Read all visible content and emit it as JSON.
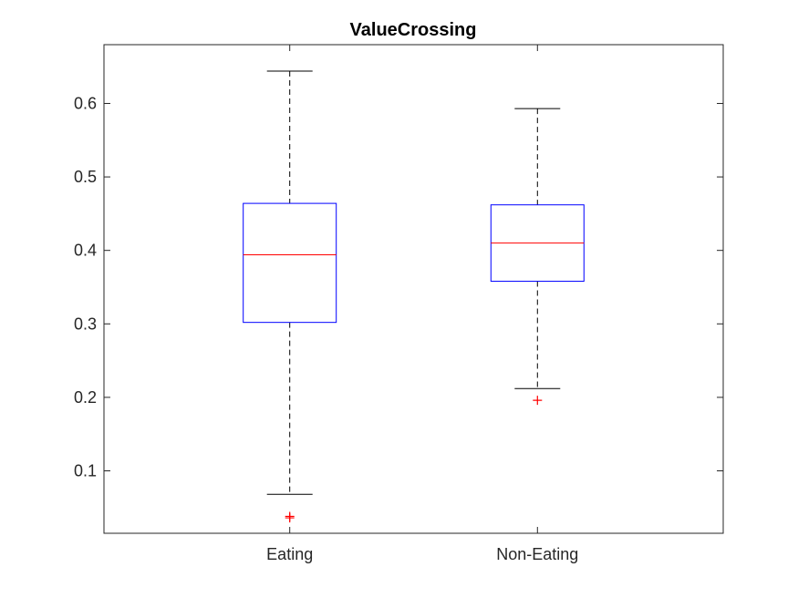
{
  "chart_data": {
    "type": "box",
    "title": "ValueCrossing",
    "xlabel": "",
    "ylabel": "",
    "categories": [
      "Eating",
      "Non-Eating"
    ],
    "ylim": [
      0.015,
      0.68
    ],
    "yticks": [
      0.1,
      0.2,
      0.3,
      0.4,
      0.5,
      0.6
    ],
    "ytick_labels": [
      "0.1",
      "0.2",
      "0.3",
      "0.4",
      "0.5",
      "0.6"
    ],
    "boxes": [
      {
        "category": "Eating",
        "whisker_low": 0.068,
        "q1": 0.302,
        "median": 0.394,
        "q3": 0.464,
        "whisker_high": 0.644,
        "outliers": [
          0.038,
          0.036
        ]
      },
      {
        "category": "Non-Eating",
        "whisker_low": 0.212,
        "q1": 0.358,
        "median": 0.41,
        "q3": 0.462,
        "whisker_high": 0.593,
        "outliers": [
          0.196
        ]
      }
    ],
    "grid": false,
    "colors": {
      "box": "#0000ff",
      "median": "#ff0000",
      "whisker": "#000000",
      "outlier": "#ff0000",
      "axis": "#262626"
    }
  }
}
